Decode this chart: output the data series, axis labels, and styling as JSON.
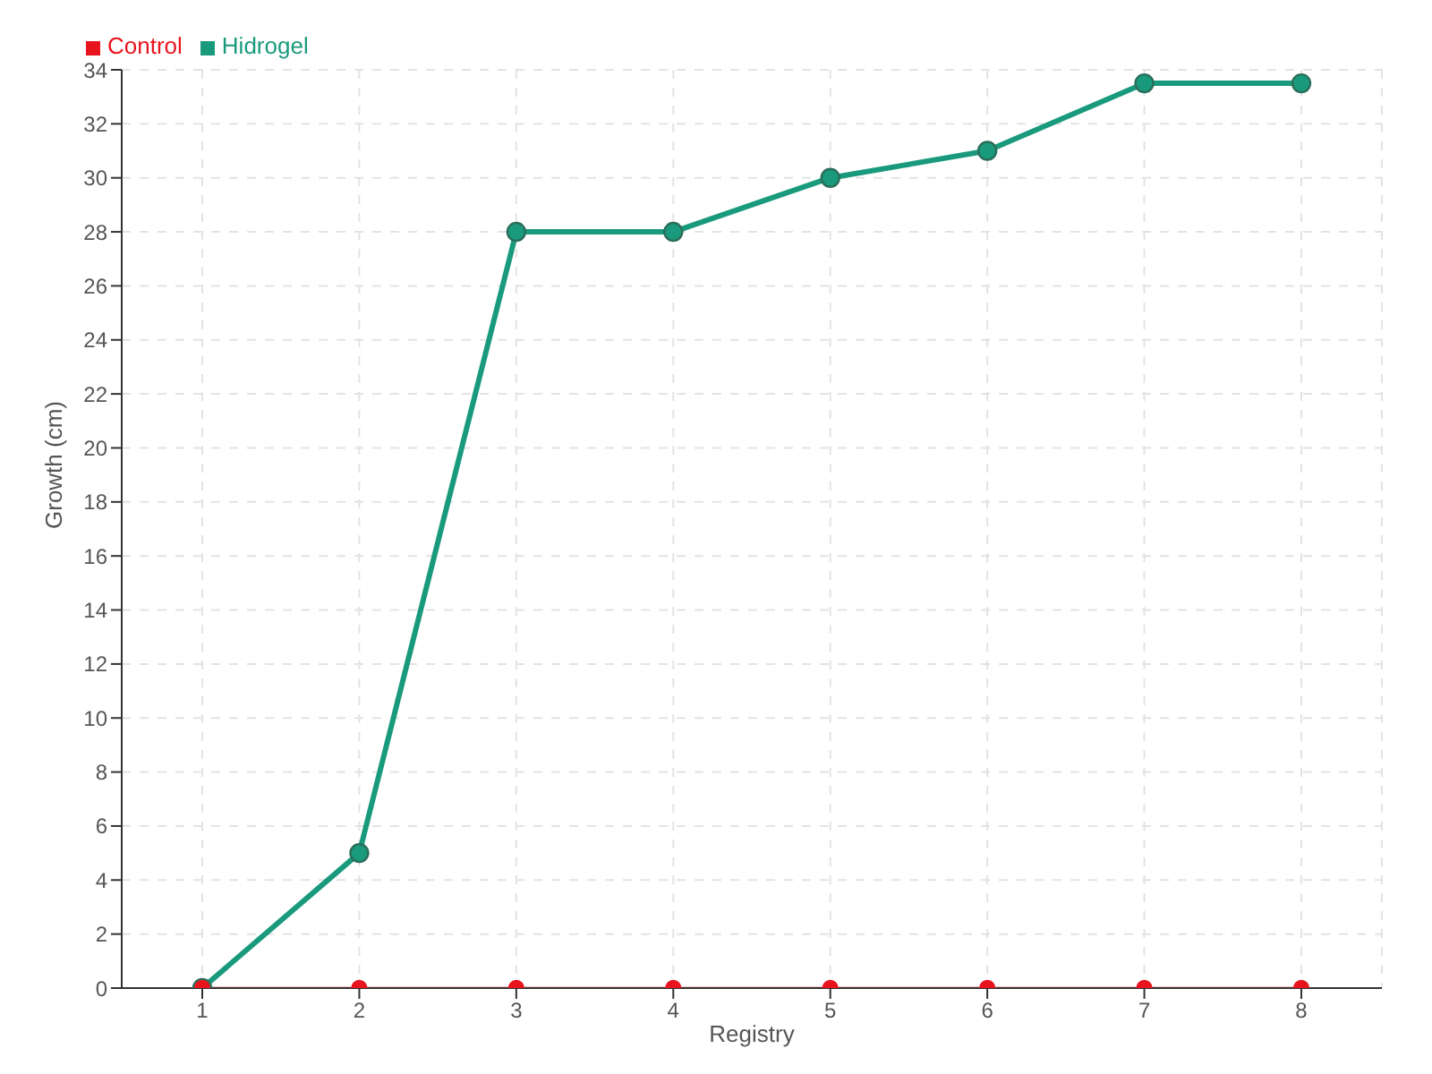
{
  "chart_data": {
    "type": "line",
    "xlabel": "Registry",
    "ylabel": "Growth (cm)",
    "categories": [
      "1",
      "2",
      "3",
      "4",
      "5",
      "6",
      "7",
      "8"
    ],
    "series": [
      {
        "name": "Hidrogel",
        "color": "#1a9a7c",
        "values": [
          0,
          5,
          28,
          28,
          30,
          31,
          33.5,
          33.5
        ]
      },
      {
        "name": "Control",
        "color": "#e8141e",
        "values": [
          0,
          0,
          0,
          0,
          0,
          0,
          0,
          0
        ]
      }
    ],
    "ylim": [
      0,
      34
    ],
    "yticks": [
      0,
      2,
      4,
      6,
      8,
      10,
      12,
      14,
      16,
      18,
      20,
      22,
      24,
      26,
      28,
      30,
      32,
      34
    ],
    "grid": true,
    "legend": "top left",
    "marker": "circle",
    "line_style": "solid"
  }
}
